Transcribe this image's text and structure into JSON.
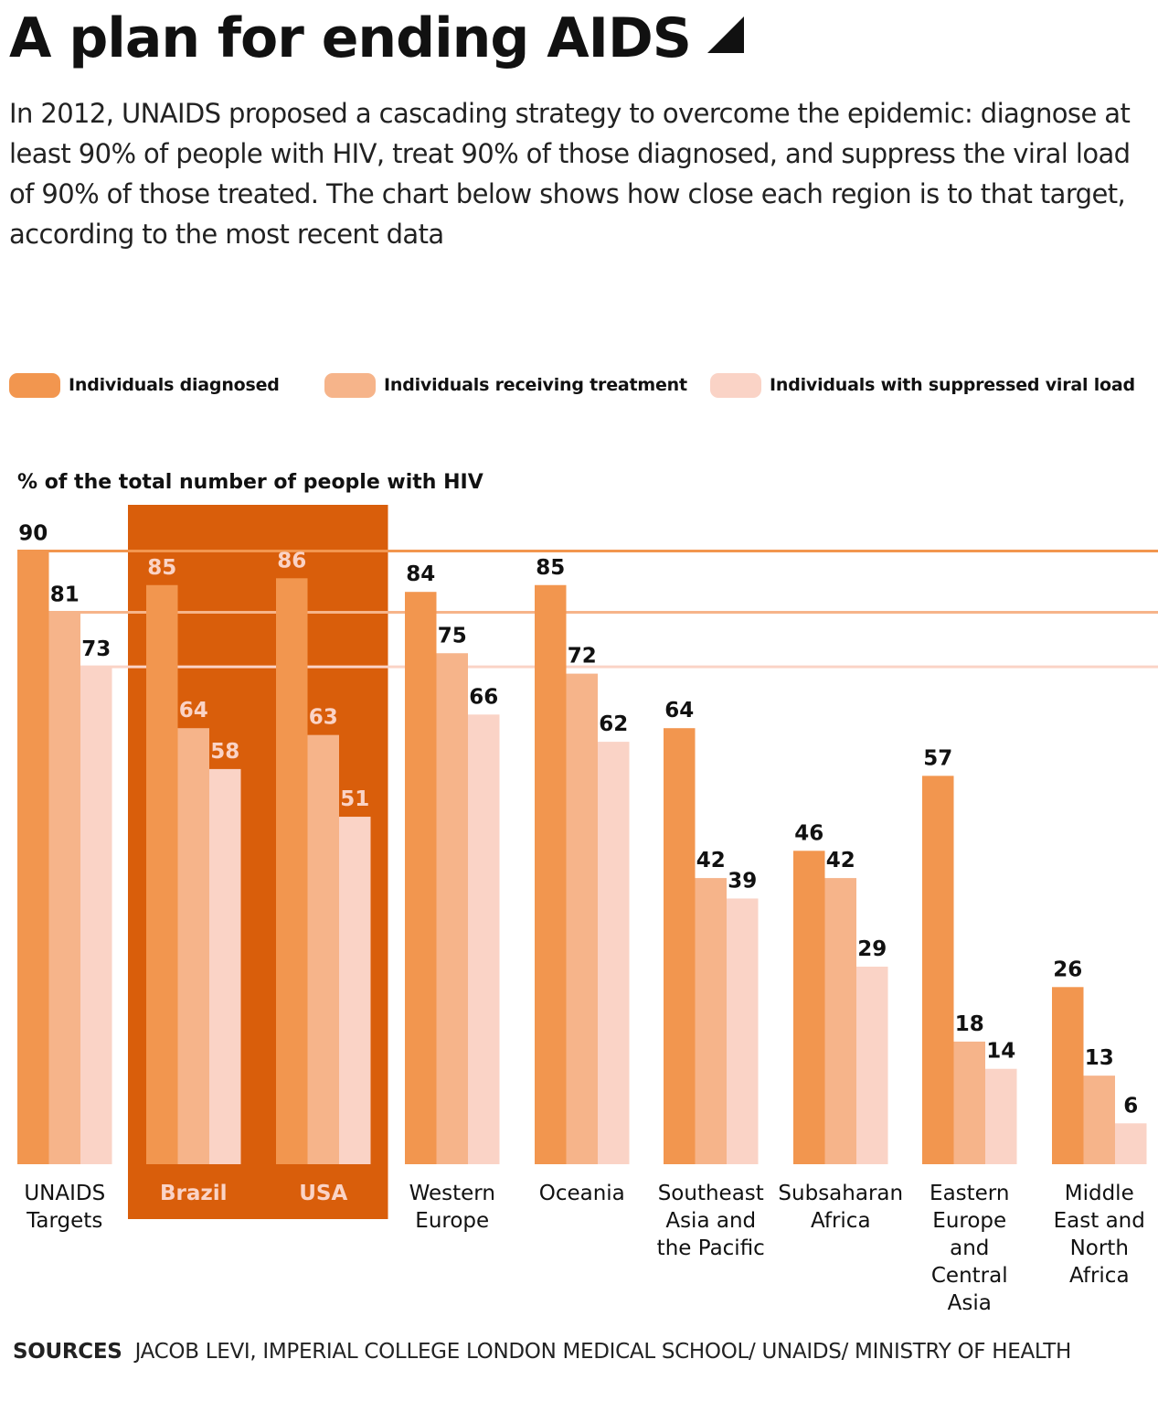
{
  "title": "A plan for ending AIDS",
  "subtitle": "In 2012, UNAIDS proposed a cascading strategy to overcome the epidemic: diagnose at least 90% of people with HIV, treat 90% of those diagnosed, and suppress the viral load of 90% of those treated. The chart below shows how close each region is to that target, according to the most recent data",
  "sources_label": "SOURCES",
  "sources_text": "JACOB LEVI, IMPERIAL COLLEGE LONDON MEDICAL SCHOOL/ UNAIDS/ MINISTRY OF HEALTH",
  "colors": {
    "diagnosed": "#f2964f",
    "treatment": "#f6b48a",
    "suppressed": "#fad3c6",
    "highlight": "#d95e0b",
    "text": "#111111"
  },
  "chart_data": {
    "type": "bar",
    "ylabel": "% of the total number of people with HIV",
    "ylim": [
      0,
      90
    ],
    "grid": false,
    "legend_position": "top",
    "highlighted_categories": [
      "Brazil",
      "USA"
    ],
    "reference_lines": [
      90,
      81,
      73
    ],
    "categories": [
      "UNAIDS Targets",
      "Brazil",
      "USA",
      "Western Europe",
      "Oceania",
      "Southeast Asia and the Pacific",
      "Subsaharan Africa",
      "Eastern Europe and Central Asia",
      "Middle East and North Africa"
    ],
    "category_label_lines": [
      [
        "UNAIDS",
        "Targets"
      ],
      [
        "Brazil"
      ],
      [
        "USA"
      ],
      [
        "Western",
        "Europe"
      ],
      [
        "Oceania"
      ],
      [
        "Southeast",
        "Asia and",
        "the Pacific"
      ],
      [
        "Subsaharan",
        "Africa"
      ],
      [
        "Eastern",
        "Europe",
        "and",
        "Central",
        "Asia"
      ],
      [
        "Middle",
        "East and",
        "North",
        "Africa"
      ]
    ],
    "series": [
      {
        "name": "Individuals diagnosed",
        "values": [
          90,
          85,
          86,
          84,
          85,
          64,
          46,
          57,
          26
        ]
      },
      {
        "name": "Individuals receiving treatment",
        "values": [
          81,
          64,
          63,
          75,
          72,
          42,
          42,
          18,
          13
        ]
      },
      {
        "name": "Individuals with suppressed viral load",
        "values": [
          73,
          58,
          51,
          66,
          62,
          39,
          29,
          14,
          6
        ]
      }
    ]
  }
}
